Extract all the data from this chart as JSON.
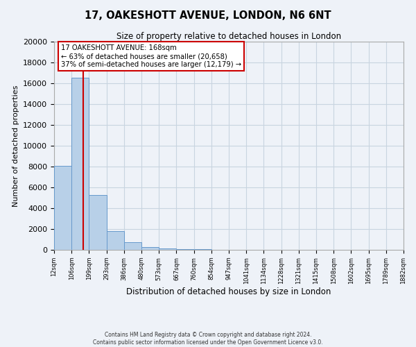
{
  "title": "17, OAKESHOTT AVENUE, LONDON, N6 6NT",
  "subtitle": "Size of property relative to detached houses in London",
  "xlabel": "Distribution of detached houses by size in London",
  "ylabel": "Number of detached properties",
  "bar_values": [
    8100,
    16500,
    5300,
    1800,
    750,
    300,
    150,
    100,
    50,
    0,
    0,
    0,
    0,
    0,
    0,
    0,
    0,
    0,
    0,
    0
  ],
  "bin_labels": [
    "12sqm",
    "106sqm",
    "199sqm",
    "293sqm",
    "386sqm",
    "480sqm",
    "573sqm",
    "667sqm",
    "760sqm",
    "854sqm",
    "947sqm",
    "1041sqm",
    "1134sqm",
    "1228sqm",
    "1321sqm",
    "1415sqm",
    "1508sqm",
    "1602sqm",
    "1695sqm",
    "1789sqm",
    "1882sqm"
  ],
  "bar_color": "#b8d0e8",
  "bar_edge_color": "#6699cc",
  "grid_color": "#c8d4e0",
  "background_color": "#eef2f8",
  "vline_color": "#cc0000",
  "annotation_box_text": "17 OAKESHOTT AVENUE: 168sqm\n← 63% of detached houses are smaller (20,658)\n37% of semi-detached houses are larger (12,179) →",
  "ylim": [
    0,
    20000
  ],
  "yticks": [
    0,
    2000,
    4000,
    6000,
    8000,
    10000,
    12000,
    14000,
    16000,
    18000,
    20000
  ],
  "footer_line1": "Contains HM Land Registry data © Crown copyright and database right 2024.",
  "footer_line2": "Contains public sector information licensed under the Open Government Licence v3.0.",
  "bin_edges_vals": [
    12,
    106,
    199,
    293,
    386,
    480,
    573,
    667,
    760,
    854,
    947,
    1041,
    1134,
    1228,
    1321,
    1415,
    1508,
    1602,
    1695,
    1789,
    1882
  ],
  "property_sqm": 168
}
